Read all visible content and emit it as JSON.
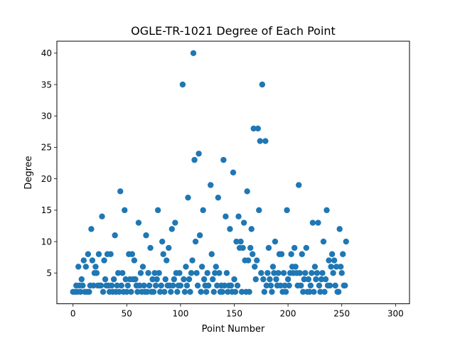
{
  "chart_data": {
    "type": "scatter",
    "title": "OGLE-TR-1021 Degree of Each Point",
    "xlabel": "Point Number",
    "ylabel": "Degree",
    "xlim": [
      -15,
      313
    ],
    "ylim": [
      0.1,
      41.9
    ],
    "xticks": [
      "0",
      "50",
      "100",
      "150",
      "200",
      "250",
      "300"
    ],
    "yticks": [
      "5",
      "10",
      "15",
      "20",
      "25",
      "30",
      "35",
      "40"
    ],
    "grid": false,
    "marker_color": "#1f77b4",
    "points": [
      [
        0,
        2
      ],
      [
        2,
        2
      ],
      [
        3,
        3
      ],
      [
        4,
        2
      ],
      [
        5,
        6
      ],
      [
        6,
        3
      ],
      [
        7,
        2
      ],
      [
        8,
        4
      ],
      [
        9,
        3
      ],
      [
        10,
        7
      ],
      [
        11,
        2
      ],
      [
        12,
        6
      ],
      [
        13,
        2
      ],
      [
        14,
        8
      ],
      [
        15,
        2
      ],
      [
        16,
        3
      ],
      [
        17,
        12
      ],
      [
        18,
        7
      ],
      [
        19,
        3
      ],
      [
        20,
        5
      ],
      [
        21,
        6
      ],
      [
        22,
        5
      ],
      [
        23,
        3
      ],
      [
        24,
        8
      ],
      [
        25,
        3
      ],
      [
        26,
        3
      ],
      [
        27,
        14
      ],
      [
        28,
        2
      ],
      [
        29,
        7
      ],
      [
        30,
        4
      ],
      [
        31,
        3
      ],
      [
        32,
        8
      ],
      [
        33,
        3
      ],
      [
        34,
        2
      ],
      [
        35,
        8
      ],
      [
        36,
        3
      ],
      [
        37,
        2
      ],
      [
        38,
        4
      ],
      [
        39,
        11
      ],
      [
        40,
        2
      ],
      [
        41,
        3
      ],
      [
        42,
        5
      ],
      [
        43,
        2
      ],
      [
        44,
        18
      ],
      [
        45,
        3
      ],
      [
        46,
        5
      ],
      [
        47,
        2
      ],
      [
        48,
        15
      ],
      [
        49,
        4
      ],
      [
        50,
        2
      ],
      [
        51,
        3
      ],
      [
        52,
        8
      ],
      [
        53,
        4
      ],
      [
        54,
        2
      ],
      [
        55,
        8
      ],
      [
        56,
        4
      ],
      [
        57,
        7
      ],
      [
        58,
        4
      ],
      [
        59,
        3
      ],
      [
        60,
        2
      ],
      [
        61,
        13
      ],
      [
        62,
        3
      ],
      [
        63,
        5
      ],
      [
        64,
        2
      ],
      [
        65,
        6
      ],
      [
        66,
        3
      ],
      [
        67,
        2
      ],
      [
        68,
        11
      ],
      [
        69,
        2
      ],
      [
        70,
        5
      ],
      [
        71,
        3
      ],
      [
        72,
        9
      ],
      [
        73,
        2
      ],
      [
        74,
        4
      ],
      [
        75,
        2
      ],
      [
        76,
        5
      ],
      [
        77,
        3
      ],
      [
        78,
        4
      ],
      [
        79,
        15
      ],
      [
        80,
        5
      ],
      [
        81,
        2
      ],
      [
        82,
        3
      ],
      [
        83,
        10
      ],
      [
        84,
        8
      ],
      [
        85,
        2
      ],
      [
        86,
        4
      ],
      [
        87,
        7
      ],
      [
        88,
        3
      ],
      [
        89,
        9
      ],
      [
        90,
        3
      ],
      [
        91,
        2
      ],
      [
        92,
        12
      ],
      [
        93,
        3
      ],
      [
        94,
        4
      ],
      [
        95,
        13
      ],
      [
        96,
        5
      ],
      [
        97,
        2
      ],
      [
        98,
        3
      ],
      [
        99,
        5
      ],
      [
        100,
        3
      ],
      [
        102,
        35
      ],
      [
        103,
        4
      ],
      [
        104,
        2
      ],
      [
        105,
        6
      ],
      [
        106,
        3
      ],
      [
        107,
        17
      ],
      [
        108,
        4
      ],
      [
        109,
        2
      ],
      [
        110,
        5
      ],
      [
        111,
        7
      ],
      [
        112,
        40
      ],
      [
        113,
        23
      ],
      [
        114,
        10
      ],
      [
        115,
        5
      ],
      [
        116,
        3
      ],
      [
        117,
        24
      ],
      [
        118,
        11
      ],
      [
        119,
        2
      ],
      [
        120,
        6
      ],
      [
        121,
        15
      ],
      [
        122,
        4
      ],
      [
        123,
        3
      ],
      [
        124,
        2
      ],
      [
        125,
        5
      ],
      [
        126,
        3
      ],
      [
        128,
        19
      ],
      [
        129,
        8
      ],
      [
        130,
        4
      ],
      [
        131,
        2
      ],
      [
        132,
        5
      ],
      [
        133,
        6
      ],
      [
        134,
        3
      ],
      [
        135,
        17
      ],
      [
        136,
        5
      ],
      [
        137,
        2
      ],
      [
        138,
        3
      ],
      [
        139,
        2
      ],
      [
        140,
        23
      ],
      [
        141,
        3
      ],
      [
        142,
        14
      ],
      [
        143,
        5
      ],
      [
        144,
        2
      ],
      [
        145,
        3
      ],
      [
        146,
        12
      ],
      [
        147,
        3
      ],
      [
        148,
        2
      ],
      [
        149,
        21
      ],
      [
        150,
        4
      ],
      [
        151,
        2
      ],
      [
        152,
        10
      ],
      [
        153,
        3
      ],
      [
        154,
        14
      ],
      [
        155,
        9
      ],
      [
        156,
        10
      ],
      [
        157,
        2
      ],
      [
        158,
        9
      ],
      [
        159,
        13
      ],
      [
        160,
        7
      ],
      [
        161,
        2
      ],
      [
        162,
        18
      ],
      [
        163,
        7
      ],
      [
        164,
        2
      ],
      [
        165,
        9
      ],
      [
        166,
        12
      ],
      [
        167,
        8
      ],
      [
        168,
        28
      ],
      [
        169,
        6
      ],
      [
        170,
        4
      ],
      [
        171,
        7
      ],
      [
        172,
        28
      ],
      [
        173,
        15
      ],
      [
        174,
        26
      ],
      [
        175,
        5
      ],
      [
        176,
        35
      ],
      [
        177,
        4
      ],
      [
        178,
        2
      ],
      [
        179,
        26
      ],
      [
        180,
        3
      ],
      [
        181,
        5
      ],
      [
        182,
        9
      ],
      [
        183,
        4
      ],
      [
        184,
        3
      ],
      [
        185,
        2
      ],
      [
        186,
        6
      ],
      [
        187,
        5
      ],
      [
        188,
        10
      ],
      [
        189,
        4
      ],
      [
        190,
        3
      ],
      [
        191,
        5
      ],
      [
        192,
        8
      ],
      [
        193,
        3
      ],
      [
        194,
        8
      ],
      [
        195,
        2
      ],
      [
        196,
        5
      ],
      [
        197,
        3
      ],
      [
        198,
        2
      ],
      [
        199,
        15
      ],
      [
        200,
        4
      ],
      [
        201,
        3
      ],
      [
        202,
        5
      ],
      [
        203,
        8
      ],
      [
        204,
        6
      ],
      [
        205,
        5
      ],
      [
        206,
        9
      ],
      [
        207,
        6
      ],
      [
        208,
        5
      ],
      [
        209,
        3
      ],
      [
        210,
        19
      ],
      [
        211,
        5
      ],
      [
        212,
        3
      ],
      [
        213,
        8
      ],
      [
        214,
        2
      ],
      [
        215,
        4
      ],
      [
        216,
        5
      ],
      [
        217,
        9
      ],
      [
        218,
        2
      ],
      [
        219,
        4
      ],
      [
        220,
        2
      ],
      [
        221,
        3
      ],
      [
        222,
        5
      ],
      [
        223,
        13
      ],
      [
        224,
        2
      ],
      [
        225,
        6
      ],
      [
        226,
        4
      ],
      [
        227,
        5
      ],
      [
        228,
        13
      ],
      [
        229,
        3
      ],
      [
        230,
        2
      ],
      [
        231,
        4
      ],
      [
        232,
        5
      ],
      [
        233,
        10
      ],
      [
        234,
        2
      ],
      [
        235,
        4
      ],
      [
        236,
        15
      ],
      [
        237,
        3
      ],
      [
        238,
        7
      ],
      [
        239,
        3
      ],
      [
        240,
        6
      ],
      [
        241,
        8
      ],
      [
        242,
        5
      ],
      [
        243,
        7
      ],
      [
        244,
        3
      ],
      [
        245,
        6
      ],
      [
        246,
        2
      ],
      [
        247,
        2
      ],
      [
        248,
        12
      ],
      [
        249,
        6
      ],
      [
        250,
        5
      ],
      [
        251,
        8
      ],
      [
        252,
        3
      ],
      [
        253,
        3
      ],
      [
        254,
        10
      ]
    ]
  }
}
